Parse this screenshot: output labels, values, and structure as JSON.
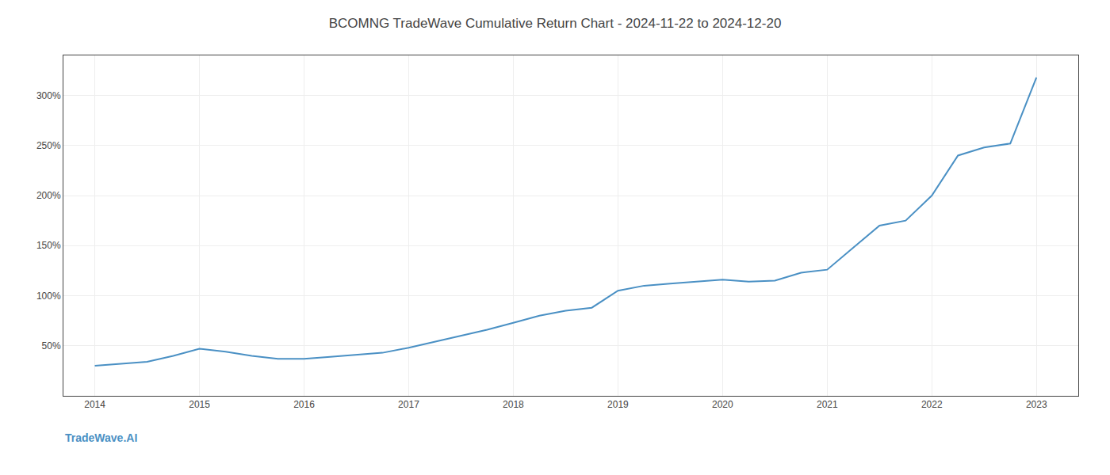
{
  "chart_data": {
    "type": "line",
    "title": "BCOMNG TradeWave Cumulative Return Chart - 2024-11-22 to 2024-12-20",
    "x": [
      2014.0,
      2014.25,
      2014.5,
      2014.75,
      2015.0,
      2015.25,
      2015.5,
      2015.75,
      2016.0,
      2016.25,
      2016.5,
      2016.75,
      2017.0,
      2017.25,
      2017.5,
      2017.75,
      2018.0,
      2018.25,
      2018.5,
      2018.75,
      2019.0,
      2019.25,
      2019.5,
      2019.75,
      2020.0,
      2020.25,
      2020.5,
      2020.75,
      2021.0,
      2021.25,
      2021.5,
      2021.75,
      2022.0,
      2022.25,
      2022.5,
      2022.75,
      2023.0
    ],
    "values": [
      30,
      32,
      34,
      40,
      47,
      44,
      40,
      37,
      37,
      39,
      41,
      43,
      48,
      54,
      60,
      66,
      73,
      80,
      85,
      88,
      105,
      110,
      112,
      114,
      116,
      114,
      115,
      123,
      126,
      148,
      170,
      175,
      200,
      240,
      248,
      252,
      318
    ],
    "color": "#4a90c4",
    "xlim": [
      2013.7,
      2023.4
    ],
    "xticks": [
      2014,
      2015,
      2016,
      2017,
      2018,
      2019,
      2020,
      2021,
      2022,
      2023
    ],
    "ylim": [
      0,
      340
    ],
    "yticks": [
      {
        "value": 50,
        "label": "50%"
      },
      {
        "value": 100,
        "label": "100%"
      },
      {
        "value": 150,
        "label": "150%"
      },
      {
        "value": 200,
        "label": "200%"
      },
      {
        "value": 250,
        "label": "250%"
      },
      {
        "value": 300,
        "label": "300%"
      }
    ],
    "grid": true,
    "annotations": [
      {
        "text": "TradeWave.AI",
        "color": "#4a90c4"
      }
    ]
  }
}
